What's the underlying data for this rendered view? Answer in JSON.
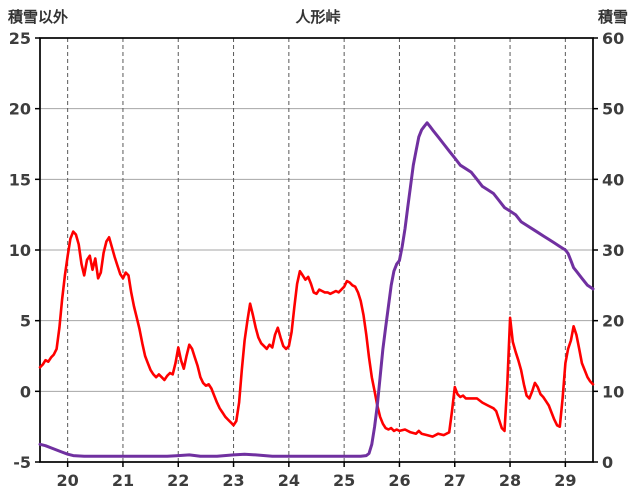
{
  "header": {
    "left_axis_title": "積雪以外",
    "title": "人形峠",
    "right_axis_title": "積雪"
  },
  "colors": {
    "red_series": "#ff0000",
    "purple_series": "#7030a0",
    "h_gridline": "#a6a6a6",
    "v_gridline": "#595959",
    "frame": "#000000",
    "tick_text": "#3d3d3d"
  },
  "chart_data": {
    "type": "line",
    "title": "人形峠",
    "x_axis": {
      "range": [
        19.5,
        29.5
      ],
      "ticks": [
        20,
        21,
        22,
        23,
        24,
        25,
        26,
        27,
        28,
        29
      ]
    },
    "left_axis": {
      "label": "積雪以外",
      "range": [
        -5,
        25
      ],
      "ticks": [
        -5,
        0,
        5,
        10,
        15,
        20,
        25
      ]
    },
    "right_axis": {
      "label": "積雪",
      "range": [
        0,
        60
      ],
      "ticks": [
        0,
        10,
        20,
        30,
        40,
        50,
        60
      ]
    },
    "grid": {
      "horizontal": "solid",
      "vertical": "dashed"
    },
    "legend": "none",
    "series": [
      {
        "name": "積雪以外",
        "axis": "left",
        "color": "#ff0000",
        "points": [
          [
            19.5,
            1.7
          ],
          [
            19.55,
            1.9
          ],
          [
            19.6,
            2.2
          ],
          [
            19.65,
            2.1
          ],
          [
            19.7,
            2.4
          ],
          [
            19.75,
            2.6
          ],
          [
            19.8,
            3.0
          ],
          [
            19.85,
            4.5
          ],
          [
            19.9,
            6.5
          ],
          [
            19.95,
            8.2
          ],
          [
            20.0,
            9.6
          ],
          [
            20.05,
            10.8
          ],
          [
            20.1,
            11.3
          ],
          [
            20.15,
            11.1
          ],
          [
            20.2,
            10.4
          ],
          [
            20.25,
            9.0
          ],
          [
            20.3,
            8.2
          ],
          [
            20.35,
            9.3
          ],
          [
            20.4,
            9.6
          ],
          [
            20.45,
            8.6
          ],
          [
            20.5,
            9.4
          ],
          [
            20.55,
            8.0
          ],
          [
            20.6,
            8.4
          ],
          [
            20.65,
            9.8
          ],
          [
            20.7,
            10.6
          ],
          [
            20.75,
            10.9
          ],
          [
            20.8,
            10.2
          ],
          [
            20.85,
            9.5
          ],
          [
            20.9,
            8.9
          ],
          [
            20.95,
            8.3
          ],
          [
            21.0,
            8.0
          ],
          [
            21.05,
            8.4
          ],
          [
            21.1,
            8.2
          ],
          [
            21.15,
            7.0
          ],
          [
            21.2,
            6.0
          ],
          [
            21.25,
            5.2
          ],
          [
            21.3,
            4.4
          ],
          [
            21.35,
            3.4
          ],
          [
            21.4,
            2.5
          ],
          [
            21.45,
            2.0
          ],
          [
            21.5,
            1.5
          ],
          [
            21.55,
            1.2
          ],
          [
            21.6,
            1.0
          ],
          [
            21.65,
            1.2
          ],
          [
            21.7,
            1.0
          ],
          [
            21.75,
            0.8
          ],
          [
            21.8,
            1.1
          ],
          [
            21.85,
            1.3
          ],
          [
            21.9,
            1.2
          ],
          [
            21.95,
            2.0
          ],
          [
            22.0,
            3.1
          ],
          [
            22.05,
            2.2
          ],
          [
            22.1,
            1.6
          ],
          [
            22.15,
            2.5
          ],
          [
            22.2,
            3.3
          ],
          [
            22.25,
            3.0
          ],
          [
            22.3,
            2.4
          ],
          [
            22.35,
            1.8
          ],
          [
            22.4,
            1.0
          ],
          [
            22.45,
            0.6
          ],
          [
            22.5,
            0.4
          ],
          [
            22.55,
            0.5
          ],
          [
            22.6,
            0.2
          ],
          [
            22.65,
            -0.3
          ],
          [
            22.7,
            -0.8
          ],
          [
            22.75,
            -1.2
          ],
          [
            22.8,
            -1.5
          ],
          [
            22.85,
            -1.8
          ],
          [
            22.9,
            -2.0
          ],
          [
            22.95,
            -2.2
          ],
          [
            23.0,
            -2.4
          ],
          [
            23.05,
            -2.1
          ],
          [
            23.1,
            -0.8
          ],
          [
            23.15,
            1.5
          ],
          [
            23.2,
            3.6
          ],
          [
            23.25,
            5.0
          ],
          [
            23.3,
            6.2
          ],
          [
            23.35,
            5.4
          ],
          [
            23.4,
            4.5
          ],
          [
            23.45,
            3.8
          ],
          [
            23.5,
            3.4
          ],
          [
            23.55,
            3.2
          ],
          [
            23.6,
            3.0
          ],
          [
            23.65,
            3.3
          ],
          [
            23.7,
            3.1
          ],
          [
            23.75,
            4.0
          ],
          [
            23.8,
            4.5
          ],
          [
            23.85,
            3.8
          ],
          [
            23.9,
            3.2
          ],
          [
            23.95,
            3.0
          ],
          [
            24.0,
            3.2
          ],
          [
            24.05,
            4.2
          ],
          [
            24.1,
            6.0
          ],
          [
            24.15,
            7.6
          ],
          [
            24.2,
            8.5
          ],
          [
            24.25,
            8.2
          ],
          [
            24.3,
            7.9
          ],
          [
            24.35,
            8.1
          ],
          [
            24.4,
            7.6
          ],
          [
            24.45,
            7.0
          ],
          [
            24.5,
            6.9
          ],
          [
            24.55,
            7.2
          ],
          [
            24.6,
            7.1
          ],
          [
            24.65,
            7.0
          ],
          [
            24.7,
            7.0
          ],
          [
            24.75,
            6.9
          ],
          [
            24.8,
            7.0
          ],
          [
            24.85,
            7.1
          ],
          [
            24.9,
            7.0
          ],
          [
            24.95,
            7.2
          ],
          [
            25.0,
            7.4
          ],
          [
            25.05,
            7.8
          ],
          [
            25.1,
            7.7
          ],
          [
            25.15,
            7.5
          ],
          [
            25.2,
            7.4
          ],
          [
            25.25,
            7.0
          ],
          [
            25.3,
            6.4
          ],
          [
            25.35,
            5.4
          ],
          [
            25.4,
            4.0
          ],
          [
            25.45,
            2.4
          ],
          [
            25.5,
            1.0
          ],
          [
            25.55,
            0.0
          ],
          [
            25.6,
            -1.0
          ],
          [
            25.65,
            -1.8
          ],
          [
            25.7,
            -2.3
          ],
          [
            25.75,
            -2.6
          ],
          [
            25.8,
            -2.7
          ],
          [
            25.85,
            -2.6
          ],
          [
            25.9,
            -2.8
          ],
          [
            25.95,
            -2.7
          ],
          [
            26.0,
            -2.8
          ],
          [
            26.1,
            -2.7
          ],
          [
            26.2,
            -2.9
          ],
          [
            26.3,
            -3.0
          ],
          [
            26.35,
            -2.8
          ],
          [
            26.4,
            -3.0
          ],
          [
            26.5,
            -3.1
          ],
          [
            26.6,
            -3.2
          ],
          [
            26.7,
            -3.0
          ],
          [
            26.8,
            -3.1
          ],
          [
            26.9,
            -2.9
          ],
          [
            26.95,
            -1.4
          ],
          [
            27.0,
            0.3
          ],
          [
            27.05,
            -0.2
          ],
          [
            27.1,
            -0.4
          ],
          [
            27.15,
            -0.3
          ],
          [
            27.2,
            -0.5
          ],
          [
            27.3,
            -0.5
          ],
          [
            27.4,
            -0.5
          ],
          [
            27.5,
            -0.8
          ],
          [
            27.6,
            -1.0
          ],
          [
            27.7,
            -1.2
          ],
          [
            27.75,
            -1.4
          ],
          [
            27.8,
            -2.0
          ],
          [
            27.85,
            -2.6
          ],
          [
            27.9,
            -2.8
          ],
          [
            27.95,
            0.5
          ],
          [
            28.0,
            5.2
          ],
          [
            28.05,
            3.5
          ],
          [
            28.1,
            2.8
          ],
          [
            28.15,
            2.2
          ],
          [
            28.2,
            1.5
          ],
          [
            28.25,
            0.5
          ],
          [
            28.3,
            -0.3
          ],
          [
            28.35,
            -0.5
          ],
          [
            28.4,
            0.0
          ],
          [
            28.45,
            0.6
          ],
          [
            28.5,
            0.3
          ],
          [
            28.55,
            -0.2
          ],
          [
            28.6,
            -0.4
          ],
          [
            28.65,
            -0.7
          ],
          [
            28.7,
            -1.0
          ],
          [
            28.75,
            -1.5
          ],
          [
            28.8,
            -2.0
          ],
          [
            28.85,
            -2.4
          ],
          [
            28.9,
            -2.5
          ],
          [
            28.95,
            -0.5
          ],
          [
            29.0,
            2.0
          ],
          [
            29.05,
            3.0
          ],
          [
            29.1,
            3.6
          ],
          [
            29.15,
            4.6
          ],
          [
            29.2,
            4.0
          ],
          [
            29.25,
            3.0
          ],
          [
            29.3,
            2.0
          ],
          [
            29.35,
            1.5
          ],
          [
            29.4,
            1.0
          ],
          [
            29.45,
            0.7
          ],
          [
            29.5,
            0.5
          ]
        ]
      },
      {
        "name": "積雪",
        "axis": "right",
        "color": "#7030a0",
        "points": [
          [
            19.5,
            2.5
          ],
          [
            19.6,
            2.3
          ],
          [
            19.7,
            2.0
          ],
          [
            19.8,
            1.7
          ],
          [
            19.9,
            1.4
          ],
          [
            20.0,
            1.1
          ],
          [
            20.1,
            0.9
          ],
          [
            20.3,
            0.8
          ],
          [
            20.6,
            0.8
          ],
          [
            21.0,
            0.8
          ],
          [
            21.4,
            0.8
          ],
          [
            21.8,
            0.8
          ],
          [
            22.0,
            0.9
          ],
          [
            22.2,
            1.0
          ],
          [
            22.4,
            0.8
          ],
          [
            22.7,
            0.8
          ],
          [
            23.0,
            1.0
          ],
          [
            23.2,
            1.1
          ],
          [
            23.4,
            1.0
          ],
          [
            23.7,
            0.8
          ],
          [
            24.0,
            0.8
          ],
          [
            24.4,
            0.8
          ],
          [
            24.8,
            0.8
          ],
          [
            25.1,
            0.8
          ],
          [
            25.3,
            0.8
          ],
          [
            25.4,
            0.9
          ],
          [
            25.45,
            1.2
          ],
          [
            25.5,
            2.5
          ],
          [
            25.55,
            5.0
          ],
          [
            25.6,
            8.0
          ],
          [
            25.65,
            12.0
          ],
          [
            25.7,
            16.0
          ],
          [
            25.75,
            19.0
          ],
          [
            25.8,
            22.0
          ],
          [
            25.85,
            25.0
          ],
          [
            25.9,
            27.0
          ],
          [
            25.95,
            28.0
          ],
          [
            26.0,
            28.5
          ],
          [
            26.05,
            30.5
          ],
          [
            26.1,
            33.0
          ],
          [
            26.15,
            36.0
          ],
          [
            26.2,
            39.0
          ],
          [
            26.25,
            42.0
          ],
          [
            26.3,
            44.0
          ],
          [
            26.35,
            46.0
          ],
          [
            26.4,
            47.0
          ],
          [
            26.45,
            47.5
          ],
          [
            26.5,
            48.0
          ],
          [
            26.55,
            47.5
          ],
          [
            26.6,
            47.0
          ],
          [
            26.7,
            46.0
          ],
          [
            26.8,
            45.0
          ],
          [
            26.9,
            44.0
          ],
          [
            27.0,
            43.0
          ],
          [
            27.1,
            42.0
          ],
          [
            27.2,
            41.5
          ],
          [
            27.3,
            41.0
          ],
          [
            27.4,
            40.0
          ],
          [
            27.5,
            39.0
          ],
          [
            27.6,
            38.5
          ],
          [
            27.7,
            38.0
          ],
          [
            27.8,
            37.0
          ],
          [
            27.9,
            36.0
          ],
          [
            28.0,
            35.5
          ],
          [
            28.1,
            35.0
          ],
          [
            28.2,
            34.0
          ],
          [
            28.3,
            33.5
          ],
          [
            28.4,
            33.0
          ],
          [
            28.5,
            32.5
          ],
          [
            28.6,
            32.0
          ],
          [
            28.7,
            31.5
          ],
          [
            28.8,
            31.0
          ],
          [
            28.9,
            30.5
          ],
          [
            29.0,
            30.0
          ],
          [
            29.05,
            29.5
          ],
          [
            29.1,
            28.5
          ],
          [
            29.15,
            27.5
          ],
          [
            29.2,
            27.0
          ],
          [
            29.3,
            26.0
          ],
          [
            29.4,
            25.0
          ],
          [
            29.5,
            24.5
          ]
        ]
      }
    ]
  }
}
